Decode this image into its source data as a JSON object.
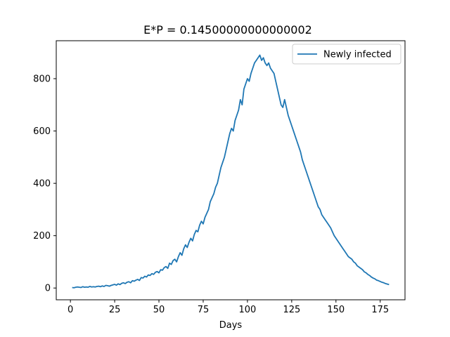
{
  "chart_data": {
    "type": "line",
    "title": "E*P = 0.14500000000000002",
    "xlabel": "Days",
    "ylabel": "",
    "xlim": [
      -8,
      189
    ],
    "ylim": [
      -45,
      945
    ],
    "xticks": [
      0,
      25,
      50,
      75,
      100,
      125,
      150,
      175
    ],
    "yticks": [
      0,
      200,
      400,
      600,
      800
    ],
    "legend_position": "top-right",
    "grid": false,
    "series": [
      {
        "name": "Newly infected",
        "color": "#1f77b4",
        "x": [
          1,
          2,
          3,
          4,
          5,
          6,
          7,
          8,
          9,
          10,
          11,
          12,
          13,
          14,
          15,
          16,
          17,
          18,
          19,
          20,
          21,
          22,
          23,
          24,
          25,
          26,
          27,
          28,
          29,
          30,
          31,
          32,
          33,
          34,
          35,
          36,
          37,
          38,
          39,
          40,
          41,
          42,
          43,
          44,
          45,
          46,
          47,
          48,
          49,
          50,
          51,
          52,
          53,
          54,
          55,
          56,
          57,
          58,
          59,
          60,
          61,
          62,
          63,
          64,
          65,
          66,
          67,
          68,
          69,
          70,
          71,
          72,
          73,
          74,
          75,
          76,
          77,
          78,
          79,
          80,
          81,
          82,
          83,
          84,
          85,
          86,
          87,
          88,
          89,
          90,
          91,
          92,
          93,
          94,
          95,
          96,
          97,
          98,
          99,
          100,
          101,
          102,
          103,
          104,
          105,
          106,
          107,
          108,
          109,
          110,
          111,
          112,
          113,
          114,
          115,
          116,
          117,
          118,
          119,
          120,
          121,
          122,
          123,
          124,
          125,
          126,
          127,
          128,
          129,
          130,
          131,
          132,
          133,
          134,
          135,
          136,
          137,
          138,
          139,
          140,
          141,
          142,
          143,
          144,
          145,
          146,
          147,
          148,
          149,
          150,
          151,
          152,
          153,
          154,
          155,
          156,
          157,
          158,
          159,
          160,
          161,
          162,
          163,
          164,
          165,
          166,
          167,
          168,
          169,
          170,
          171,
          172,
          173,
          174,
          175,
          176,
          177,
          178,
          179,
          180
        ],
        "y": [
          2,
          1,
          3,
          4,
          3,
          2,
          5,
          3,
          4,
          3,
          6,
          4,
          5,
          4,
          6,
          7,
          5,
          8,
          6,
          10,
          9,
          7,
          10,
          12,
          14,
          11,
          16,
          13,
          18,
          20,
          17,
          22,
          24,
          20,
          28,
          26,
          30,
          33,
          29,
          40,
          38,
          45,
          42,
          50,
          48,
          55,
          52,
          60,
          63,
          58,
          70,
          68,
          78,
          82,
          75,
          95,
          90,
          105,
          110,
          100,
          120,
          135,
          125,
          150,
          165,
          155,
          175,
          190,
          180,
          205,
          220,
          215,
          240,
          255,
          245,
          270,
          285,
          300,
          330,
          345,
          360,
          385,
          400,
          430,
          460,
          480,
          500,
          530,
          560,
          590,
          610,
          600,
          640,
          660,
          680,
          720,
          700,
          760,
          780,
          800,
          790,
          820,
          840,
          860,
          870,
          880,
          890,
          870,
          880,
          860,
          850,
          860,
          840,
          830,
          820,
          790,
          760,
          730,
          700,
          690,
          720,
          690,
          660,
          640,
          620,
          600,
          580,
          560,
          540,
          520,
          490,
          470,
          450,
          430,
          410,
          390,
          370,
          350,
          330,
          310,
          300,
          280,
          270,
          260,
          250,
          240,
          230,
          215,
          200,
          190,
          180,
          170,
          160,
          150,
          140,
          130,
          120,
          115,
          110,
          100,
          95,
          85,
          80,
          75,
          70,
          62,
          58,
          52,
          48,
          42,
          38,
          35,
          30,
          28,
          25,
          22,
          20,
          17,
          15,
          13
        ]
      }
    ]
  }
}
